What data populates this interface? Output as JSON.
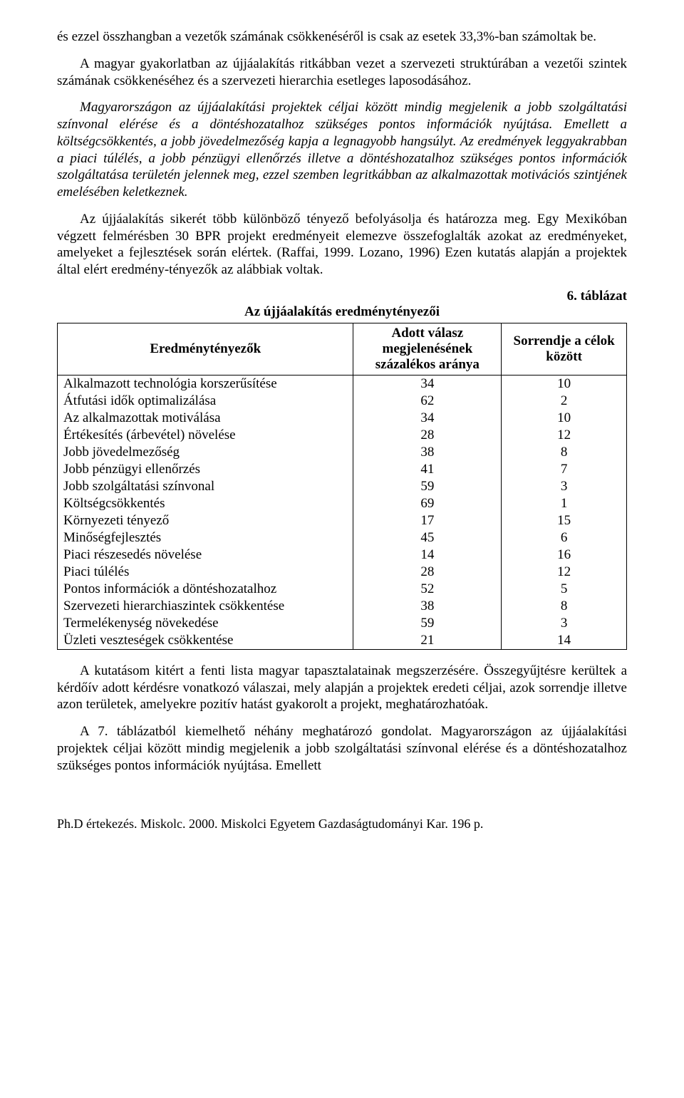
{
  "paragraphs": {
    "p1": "és ezzel összhangban a vezetők számának csökkenéséről is csak az esetek 33,3%-ban számoltak be.",
    "p2": "A magyar gyakorlatban az újjáalakítás ritkábban vezet a szervezeti struktúrában a vezetői szintek számának csökkenéséhez és a szervezeti hierarchia esetleges laposodásához.",
    "p3": "Magyarországon az újjáalakítási projektek céljai között mindig megjelenik a jobb szolgáltatási színvonal elérése és a döntéshozatalhoz szükséges pontos információk nyújtása. Emellett a költségcsökkentés, a jobb jövedelmezőség kapja a legnagyobb hangsúlyt. Az eredmények leggyakrabban a piaci túlélés, a jobb pénzügyi ellenőrzés illetve a döntéshozatalhoz szükséges pontos információk szolgáltatása területén jelennek meg, ezzel szemben legritkábban az alkalmazottak motivációs szintjének emelésében keletkeznek.",
    "p4": "Az újjáalakítás sikerét több különböző tényező befolyásolja és határozza meg. Egy Mexikóban végzett felmérésben 30 BPR projekt eredményeit elemezve összefoglalták azokat az eredményeket, amelyeket a fejlesztések során elértek. (Raffai, 1999. Lozano, 1996) Ezen kutatás alapján a projektek által elért eredmény-tényezők az alábbiak voltak.",
    "p5": "A kutatásom kitért a fenti lista magyar tapasztalatainak megszerzésére. Összegyűjtésre kerültek a kérdőív adott kérdésre vonatkozó válaszai, mely alapján a projektek eredeti céljai, azok sorrendje illetve azon területek, amelyekre pozitív hatást gyakorolt a projekt, meghatározhatóak.",
    "p6": "A 7. táblázatból kiemelhető néhány meghatározó gondolat. Magyarországon az újjáalakítási projektek céljai között mindig megjelenik a jobb szolgáltatási színvonal elérése és a döntéshozatalhoz szükséges pontos információk nyújtása. Emellett"
  },
  "table": {
    "label": "6. táblázat",
    "title": "Az újjáalakítás eredménytényezői",
    "headers": {
      "factor": "Eredménytényezők",
      "percent": "Adott válasz megjelenésének százalékos aránya",
      "rank": "Sorrendje a célok között"
    },
    "rows": [
      {
        "factor": "Alkalmazott technológia korszerűsítése",
        "percent": "34",
        "rank": "10"
      },
      {
        "factor": "Átfutási idők optimalizálása",
        "percent": "62",
        "rank": "2"
      },
      {
        "factor": "Az alkalmazottak motiválása",
        "percent": "34",
        "rank": "10"
      },
      {
        "factor": "Értékesítés (árbevétel) növelése",
        "percent": "28",
        "rank": "12"
      },
      {
        "factor": "Jobb jövedelmezőség",
        "percent": "38",
        "rank": "8"
      },
      {
        "factor": "Jobb pénzügyi ellenőrzés",
        "percent": "41",
        "rank": "7"
      },
      {
        "factor": "Jobb szolgáltatási színvonal",
        "percent": "59",
        "rank": "3"
      },
      {
        "factor": "Költségcsökkentés",
        "percent": "69",
        "rank": "1"
      },
      {
        "factor": "Környezeti tényező",
        "percent": "17",
        "rank": "15"
      },
      {
        "factor": "Minőségfejlesztés",
        "percent": "45",
        "rank": "6"
      },
      {
        "factor": "Piaci részesedés növelése",
        "percent": "14",
        "rank": "16"
      },
      {
        "factor": "Piaci túlélés",
        "percent": "28",
        "rank": "12"
      },
      {
        "factor": "Pontos információk a döntéshozatalhoz",
        "percent": "52",
        "rank": "5"
      },
      {
        "factor": "Szervezeti hierarchiaszintek csökkentése",
        "percent": "38",
        "rank": "8"
      },
      {
        "factor": "Termelékenység növekedése",
        "percent": "59",
        "rank": "3"
      },
      {
        "factor": "Üzleti veszteségek csökkentése",
        "percent": "21",
        "rank": "14"
      }
    ]
  },
  "footer": "Ph.D értekezés. Miskolc. 2000. Miskolci Egyetem Gazdaságtudományi Kar. 196 p."
}
